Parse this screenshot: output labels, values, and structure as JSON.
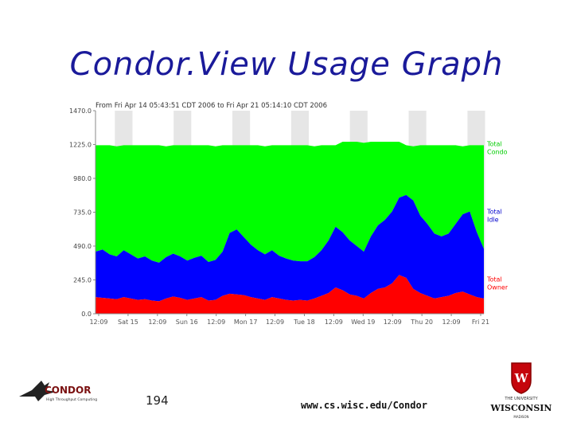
{
  "slide": {
    "title": "Condor.View Usage Graph",
    "number": "194",
    "url": "www.cs.wisc.edu/Condor"
  },
  "logos": {
    "left": {
      "text": "CONDOR",
      "tagline": "High Throughput Computing",
      "icon": "condor-bird-icon"
    },
    "right": {
      "line1": "THE UNIVERSITY",
      "line2": "WISCONSIN",
      "line3": "MADISON",
      "icon": "uw-crest-icon"
    }
  },
  "colors": {
    "title": "#1a1a9a",
    "condor": "#00ff00",
    "idle": "#0000ff",
    "owner": "#ff0000",
    "night": "#e6e6e6",
    "legend_green": "#00cc00",
    "legend_red": "#ff0000",
    "legend_blue": "#0000cc"
  },
  "chart_data": {
    "type": "area",
    "stacked": true,
    "title": "From Fri Apr 14 05:43:51 CDT 2006 to Fri Apr 21 05:14:10 CDT 2006",
    "ylim": [
      0,
      1470
    ],
    "y_ticks": [
      "0.0",
      "245.0",
      "490.0",
      "735.0",
      "980.0",
      "1225.0",
      "1470.0"
    ],
    "x_ticks": [
      "12:09",
      "Sat 15",
      "12:09",
      "Sun 16",
      "12:09",
      "Mon 17",
      "12:09",
      "Tue 18",
      "12:09",
      "Wed 19",
      "12:09",
      "Thu 20",
      "12:09",
      "Fri 21"
    ],
    "legend": [
      {
        "label": "Total Condor",
        "color": "#00cc00"
      },
      {
        "label": "Total Idle",
        "color": "#0000cc"
      },
      {
        "label": "Total Owner",
        "color": "#ff0000"
      }
    ],
    "total_condor_approx": 1220,
    "series": [
      {
        "name": "Total Owner",
        "values": [
          120,
          115,
          110,
          105,
          120,
          110,
          100,
          105,
          95,
          90,
          110,
          125,
          115,
          100,
          110,
          120,
          95,
          100,
          130,
          145,
          140,
          135,
          120,
          110,
          100,
          120,
          110,
          100,
          95,
          100,
          95,
          110,
          130,
          150,
          190,
          170,
          140,
          130,
          110,
          150,
          180,
          190,
          220,
          280,
          260,
          180,
          150,
          130,
          110,
          120,
          130,
          150,
          160,
          140,
          120,
          110
        ]
      },
      {
        "name": "Total Idle",
        "values": [
          330,
          350,
          320,
          310,
          340,
          320,
          300,
          310,
          290,
          280,
          300,
          310,
          300,
          285,
          295,
          300,
          280,
          290,
          320,
          440,
          470,
          420,
          380,
          350,
          330,
          340,
          310,
          300,
          290,
          280,
          285,
          300,
          330,
          380,
          440,
          420,
          390,
          360,
          340,
          410,
          460,
          490,
          520,
          560,
          600,
          640,
          560,
          520,
          470,
          440,
          450,
          500,
          560,
          600,
          470,
          360
        ]
      }
    ]
  }
}
